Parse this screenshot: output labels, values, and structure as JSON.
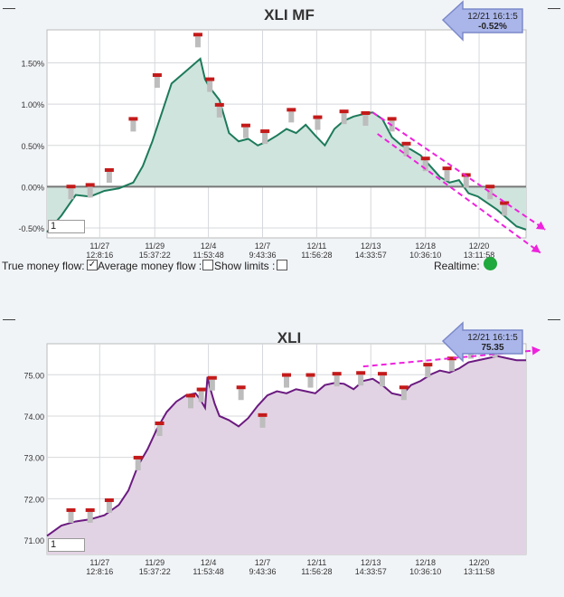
{
  "top_left_mark": "—",
  "top_right_mark": "—",
  "mid_left_mark": "—",
  "mid_right_mark": "—",
  "controls": {
    "true_money_flow": "True money flow:",
    "average_money_flow": "Average money flow :",
    "show_limits": "Show limits :",
    "realtime": "Realtime:",
    "checked_glyph": "✓"
  },
  "chart_data": [
    {
      "type": "area",
      "title": "XLI MF",
      "tooltip": {
        "time": "12/21 16:1:5",
        "value": "-0.52%"
      },
      "input_value": "1",
      "colors": {
        "line": "#1c7a5a",
        "fill": "#cfe4dd",
        "zero_line": "#777777",
        "trend": "#ee22dd"
      },
      "x_ticks": [
        {
          "x": 0.11,
          "date": "11/27",
          "time": "12:8:16"
        },
        {
          "x": 0.225,
          "date": "11/29",
          "time": "15:37:22"
        },
        {
          "x": 0.337,
          "date": "12/4",
          "time": "11:53:48"
        },
        {
          "x": 0.45,
          "date": "12/7",
          "time": "9:43:36"
        },
        {
          "x": 0.563,
          "date": "12/11",
          "time": "11:56:28"
        },
        {
          "x": 0.676,
          "date": "12/13",
          "time": "14:33:57"
        },
        {
          "x": 0.79,
          "date": "12/18",
          "time": "10:36:10"
        },
        {
          "x": 0.902,
          "date": "12/20",
          "time": "13:11:58"
        }
      ],
      "y_ticks": [
        "1.50%",
        "1.00%",
        "0.50%",
        "0.00%",
        "-0.50%"
      ],
      "y_tick_values": [
        1.5,
        1.0,
        0.5,
        0.0,
        -0.5
      ],
      "ylim": [
        -0.62,
        1.9
      ],
      "x": [
        0,
        0.03,
        0.06,
        0.09,
        0.12,
        0.15,
        0.18,
        0.2,
        0.22,
        0.24,
        0.26,
        0.28,
        0.3,
        0.31,
        0.32,
        0.33,
        0.34,
        0.36,
        0.38,
        0.4,
        0.42,
        0.44,
        0.46,
        0.48,
        0.5,
        0.52,
        0.54,
        0.56,
        0.58,
        0.6,
        0.62,
        0.64,
        0.66,
        0.68,
        0.7,
        0.72,
        0.74,
        0.76,
        0.78,
        0.8,
        0.82,
        0.84,
        0.86,
        0.88,
        0.9,
        0.92,
        0.94,
        0.96,
        0.98,
        1.0
      ],
      "values": [
        -0.55,
        -0.35,
        -0.1,
        -0.12,
        -0.05,
        -0.02,
        0.05,
        0.25,
        0.55,
        0.9,
        1.25,
        1.35,
        1.45,
        1.5,
        1.55,
        1.3,
        1.2,
        1.05,
        0.65,
        0.55,
        0.58,
        0.5,
        0.55,
        0.62,
        0.7,
        0.65,
        0.75,
        0.62,
        0.5,
        0.7,
        0.8,
        0.85,
        0.88,
        0.9,
        0.82,
        0.6,
        0.5,
        0.45,
        0.38,
        0.25,
        0.12,
        0.05,
        0.08,
        -0.08,
        -0.12,
        -0.2,
        -0.28,
        -0.38,
        -0.48,
        -0.52
      ],
      "markers": [
        {
          "x": 0.05,
          "v": -0.02
        },
        {
          "x": 0.09,
          "v": 0.0
        },
        {
          "x": 0.13,
          "v": 0.18
        },
        {
          "x": 0.18,
          "v": 0.8
        },
        {
          "x": 0.23,
          "v": 1.33
        },
        {
          "x": 0.315,
          "v": 1.82
        },
        {
          "x": 0.34,
          "v": 1.28
        },
        {
          "x": 0.36,
          "v": 0.97
        },
        {
          "x": 0.415,
          "v": 0.72
        },
        {
          "x": 0.455,
          "v": 0.65
        },
        {
          "x": 0.51,
          "v": 0.91
        },
        {
          "x": 0.565,
          "v": 0.82
        },
        {
          "x": 0.62,
          "v": 0.89
        },
        {
          "x": 0.665,
          "v": 0.87
        },
        {
          "x": 0.72,
          "v": 0.8
        },
        {
          "x": 0.75,
          "v": 0.5
        },
        {
          "x": 0.79,
          "v": 0.32
        },
        {
          "x": 0.835,
          "v": 0.2
        },
        {
          "x": 0.875,
          "v": 0.12
        },
        {
          "x": 0.925,
          "v": -0.02
        },
        {
          "x": 0.955,
          "v": -0.22
        }
      ],
      "trend_lines": [
        [
          [
            0.68,
            0.9
          ],
          [
            1.04,
            -0.52
          ]
        ],
        [
          [
            0.69,
            0.64
          ],
          [
            1.03,
            -0.8
          ]
        ]
      ]
    },
    {
      "type": "area",
      "title": "XLI",
      "tooltip": {
        "time": "12/21 16:1:5",
        "value": "75.35"
      },
      "input_value": "1",
      "colors": {
        "line": "#6b1a80",
        "fill": "#e2d3e4",
        "trend": "#ee22dd"
      },
      "x_ticks": [
        {
          "x": 0.11,
          "date": "11/27",
          "time": "12:8:16"
        },
        {
          "x": 0.225,
          "date": "11/29",
          "time": "15:37:22"
        },
        {
          "x": 0.337,
          "date": "12/4",
          "time": "11:53:48"
        },
        {
          "x": 0.45,
          "date": "12/7",
          "time": "9:43:36"
        },
        {
          "x": 0.563,
          "date": "12/11",
          "time": "11:56:28"
        },
        {
          "x": 0.676,
          "date": "12/13",
          "time": "14:33:57"
        },
        {
          "x": 0.79,
          "date": "12/18",
          "time": "10:36:10"
        },
        {
          "x": 0.902,
          "date": "12/20",
          "time": "13:11:58"
        }
      ],
      "y_ticks": [
        "75.00",
        "74.00",
        "73.00",
        "72.00",
        "71.00"
      ],
      "y_tick_values": [
        75.0,
        74.0,
        73.0,
        72.0,
        71.0
      ],
      "ylim": [
        70.65,
        75.75
      ],
      "x": [
        0,
        0.03,
        0.06,
        0.09,
        0.12,
        0.15,
        0.17,
        0.19,
        0.21,
        0.23,
        0.25,
        0.27,
        0.29,
        0.31,
        0.32,
        0.33,
        0.335,
        0.34,
        0.35,
        0.36,
        0.38,
        0.4,
        0.42,
        0.44,
        0.46,
        0.48,
        0.5,
        0.52,
        0.54,
        0.56,
        0.58,
        0.6,
        0.62,
        0.64,
        0.66,
        0.68,
        0.7,
        0.72,
        0.74,
        0.76,
        0.78,
        0.8,
        0.82,
        0.84,
        0.86,
        0.88,
        0.9,
        0.92,
        0.94,
        0.96,
        0.98,
        1.0
      ],
      "values": [
        71.1,
        71.35,
        71.45,
        71.5,
        71.6,
        71.85,
        72.2,
        72.8,
        73.2,
        73.7,
        74.1,
        74.35,
        74.5,
        74.55,
        74.4,
        74.2,
        74.95,
        74.7,
        74.3,
        74.0,
        73.9,
        73.75,
        73.95,
        74.25,
        74.5,
        74.6,
        74.55,
        74.65,
        74.6,
        74.55,
        74.75,
        74.8,
        74.78,
        74.65,
        74.85,
        74.9,
        74.75,
        74.55,
        74.5,
        74.75,
        74.85,
        75.0,
        75.1,
        75.05,
        75.15,
        75.3,
        75.35,
        75.4,
        75.45,
        75.4,
        75.35,
        75.35
      ],
      "markers": [
        {
          "x": 0.05,
          "v": 71.68
        },
        {
          "x": 0.09,
          "v": 71.68
        },
        {
          "x": 0.13,
          "v": 71.92
        },
        {
          "x": 0.19,
          "v": 72.95
        },
        {
          "x": 0.235,
          "v": 73.78
        },
        {
          "x": 0.3,
          "v": 74.45
        },
        {
          "x": 0.322,
          "v": 74.6
        },
        {
          "x": 0.345,
          "v": 74.88
        },
        {
          "x": 0.405,
          "v": 74.65
        },
        {
          "x": 0.45,
          "v": 73.98
        },
        {
          "x": 0.5,
          "v": 74.95
        },
        {
          "x": 0.55,
          "v": 74.95
        },
        {
          "x": 0.605,
          "v": 74.98
        },
        {
          "x": 0.655,
          "v": 75.0
        },
        {
          "x": 0.7,
          "v": 74.98
        },
        {
          "x": 0.745,
          "v": 74.65
        },
        {
          "x": 0.795,
          "v": 75.2
        },
        {
          "x": 0.845,
          "v": 75.35
        },
        {
          "x": 0.885,
          "v": 75.65
        },
        {
          "x": 0.935,
          "v": 75.68
        }
      ],
      "trend_lines": [
        [
          [
            0.66,
            75.2
          ],
          [
            1.03,
            75.6
          ]
        ]
      ]
    }
  ]
}
